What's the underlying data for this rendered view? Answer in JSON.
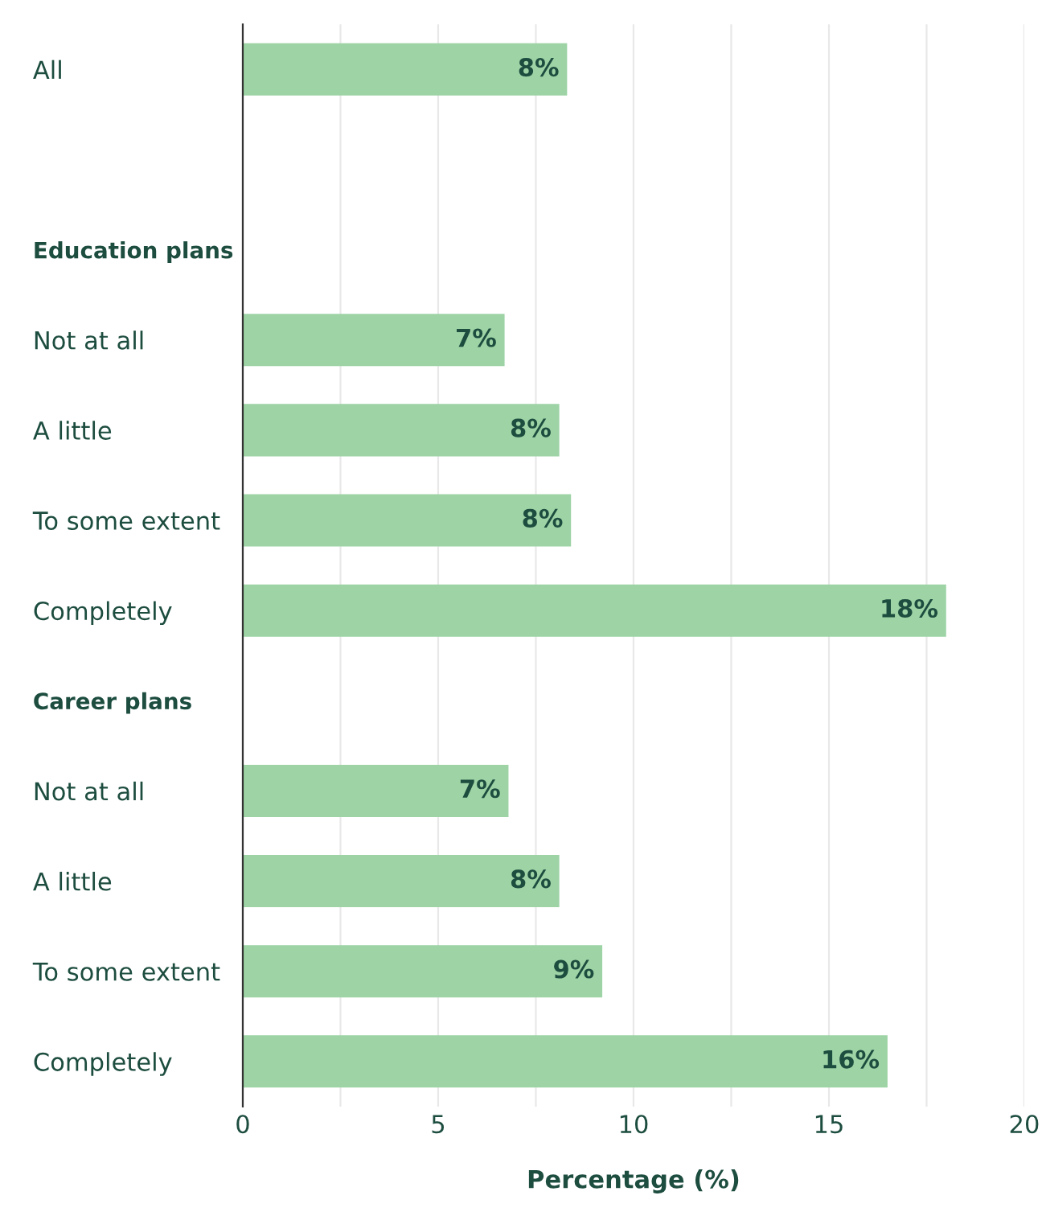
{
  "chart_data": {
    "type": "bar",
    "orientation": "horizontal",
    "categories": [
      "All",
      null,
      "Education plans",
      "Not at all",
      "A little",
      "To some extent",
      "Completely",
      "Career plans",
      "Not at all",
      "A little",
      "To some extent",
      "Completely"
    ],
    "values": [
      8.3,
      null,
      null,
      6.7,
      8.1,
      8.4,
      18.0,
      null,
      6.8,
      8.1,
      9.2,
      16.5
    ],
    "value_labels": [
      "8%",
      null,
      null,
      "7%",
      "8%",
      "8%",
      "18%",
      null,
      "7%",
      "8%",
      "9%",
      "16%"
    ],
    "color": "#9dd3a5",
    "xlabel": "Percentage (%)",
    "xlim": [
      0,
      20
    ],
    "xticks": [
      0,
      {
        "value": 2.5,
        "label": null
      },
      5,
      {
        "value": 7.5,
        "label": null
      },
      10,
      {
        "value": 12.5,
        "label": null
      },
      15,
      {
        "value": 17.5,
        "label": null
      },
      20
    ],
    "grid": "x",
    "legend": false
  }
}
